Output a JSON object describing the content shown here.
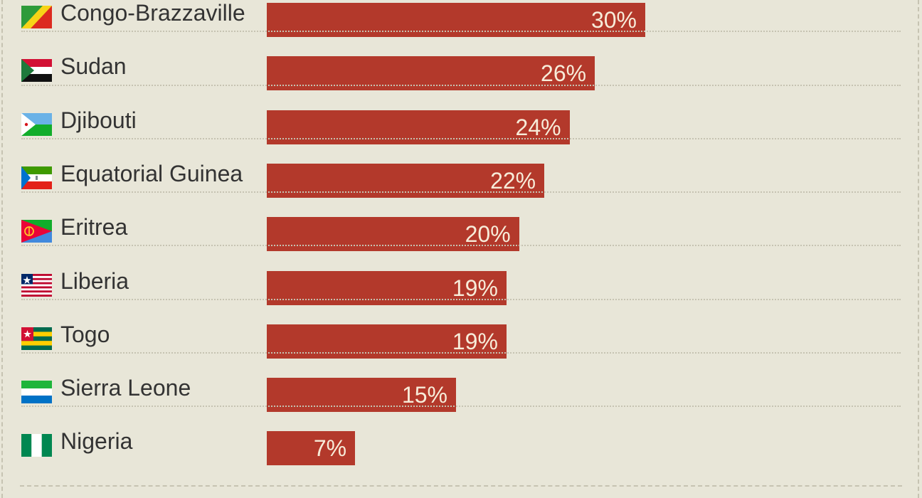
{
  "chart_data": {
    "type": "bar",
    "orientation": "horizontal",
    "categories": [
      "Congo-Brazzaville",
      "Sudan",
      "Djibouti",
      "Equatorial Guinea",
      "Eritrea",
      "Liberia",
      "Togo",
      "Sierra Leone",
      "Nigeria"
    ],
    "values": [
      30,
      26,
      24,
      22,
      20,
      19,
      19,
      15,
      7
    ],
    "value_labels": [
      "30%",
      "26%",
      "24%",
      "22%",
      "20%",
      "19%",
      "19%",
      "15%",
      "7%"
    ],
    "bar_color": "#b3392b",
    "value_label_color": "#f7ecd9",
    "xlim": [
      0,
      30
    ],
    "grid": false,
    "flag_icons": [
      "congo-brazzaville-flag-icon",
      "sudan-flag-icon",
      "djibouti-flag-icon",
      "equatorial-guinea-flag-icon",
      "eritrea-flag-icon",
      "liberia-flag-icon",
      "togo-flag-icon",
      "sierra-leone-flag-icon",
      "nigeria-flag-icon"
    ]
  },
  "colors": {
    "background": "#e8e6d8",
    "bar": "#b3392b",
    "text": "#333333",
    "divider": "#c6c3b2"
  }
}
